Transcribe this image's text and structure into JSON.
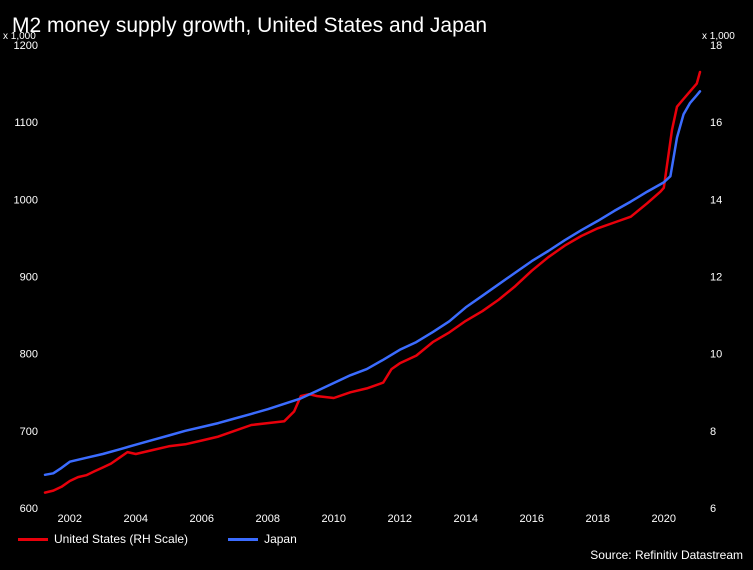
{
  "chart_data": {
    "type": "line",
    "title": "M2 money supply growth, United States and Japan",
    "left_axis": {
      "unit": "x 1,000",
      "ylim": [
        600,
        1200
      ],
      "ticks": [
        600,
        700,
        800,
        900,
        1000,
        1100,
        1200
      ]
    },
    "right_axis": {
      "unit": "x 1,000",
      "ylim": [
        6,
        18
      ],
      "ticks": [
        6,
        8,
        10,
        12,
        14,
        16,
        18
      ]
    },
    "xlim": [
      2001.25,
      2021.25
    ],
    "x_ticks": [
      2002,
      2004,
      2006,
      2008,
      2010,
      2012,
      2014,
      2016,
      2018,
      2020
    ],
    "series": [
      {
        "name": "United States (RH Scale)",
        "axis": "right",
        "color": "#e8000b",
        "points": [
          [
            2001.25,
            6.4
          ],
          [
            2001.5,
            6.45
          ],
          [
            2001.75,
            6.55
          ],
          [
            2002.0,
            6.7
          ],
          [
            2002.25,
            6.8
          ],
          [
            2002.5,
            6.85
          ],
          [
            2002.75,
            6.95
          ],
          [
            2003.0,
            7.05
          ],
          [
            2003.25,
            7.15
          ],
          [
            2003.5,
            7.3
          ],
          [
            2003.75,
            7.45
          ],
          [
            2004.0,
            7.4
          ],
          [
            2004.5,
            7.5
          ],
          [
            2005.0,
            7.6
          ],
          [
            2005.5,
            7.65
          ],
          [
            2006.0,
            7.75
          ],
          [
            2006.5,
            7.85
          ],
          [
            2007.0,
            8.0
          ],
          [
            2007.5,
            8.15
          ],
          [
            2008.0,
            8.2
          ],
          [
            2008.5,
            8.25
          ],
          [
            2008.8,
            8.5
          ],
          [
            2009.0,
            8.9
          ],
          [
            2009.25,
            8.95
          ],
          [
            2009.5,
            8.9
          ],
          [
            2010.0,
            8.85
          ],
          [
            2010.5,
            9.0
          ],
          [
            2011.0,
            9.1
          ],
          [
            2011.5,
            9.25
          ],
          [
            2011.75,
            9.6
          ],
          [
            2012.0,
            9.75
          ],
          [
            2012.5,
            9.95
          ],
          [
            2013.0,
            10.3
          ],
          [
            2013.5,
            10.55
          ],
          [
            2014.0,
            10.85
          ],
          [
            2014.5,
            11.1
          ],
          [
            2015.0,
            11.4
          ],
          [
            2015.5,
            11.75
          ],
          [
            2016.0,
            12.15
          ],
          [
            2016.5,
            12.5
          ],
          [
            2017.0,
            12.8
          ],
          [
            2017.5,
            13.05
          ],
          [
            2018.0,
            13.25
          ],
          [
            2018.5,
            13.4
          ],
          [
            2019.0,
            13.55
          ],
          [
            2019.5,
            13.9
          ],
          [
            2019.9,
            14.2
          ],
          [
            2020.0,
            14.3
          ],
          [
            2020.25,
            15.8
          ],
          [
            2020.4,
            16.4
          ],
          [
            2020.6,
            16.6
          ],
          [
            2020.8,
            16.8
          ],
          [
            2021.0,
            17.0
          ],
          [
            2021.1,
            17.3
          ]
        ]
      },
      {
        "name": "Japan",
        "axis": "left",
        "color": "#3b6cff",
        "points": [
          [
            2001.25,
            643
          ],
          [
            2001.5,
            645
          ],
          [
            2001.75,
            652
          ],
          [
            2002.0,
            660
          ],
          [
            2002.5,
            665
          ],
          [
            2003.0,
            670
          ],
          [
            2003.5,
            676
          ],
          [
            2004.0,
            682
          ],
          [
            2004.5,
            688
          ],
          [
            2005.0,
            694
          ],
          [
            2005.5,
            700
          ],
          [
            2006.0,
            705
          ],
          [
            2006.5,
            710
          ],
          [
            2007.0,
            716
          ],
          [
            2007.5,
            722
          ],
          [
            2008.0,
            728
          ],
          [
            2008.5,
            735
          ],
          [
            2009.0,
            742
          ],
          [
            2009.5,
            752
          ],
          [
            2010.0,
            762
          ],
          [
            2010.5,
            772
          ],
          [
            2011.0,
            780
          ],
          [
            2011.5,
            792
          ],
          [
            2012.0,
            805
          ],
          [
            2012.5,
            815
          ],
          [
            2013.0,
            828
          ],
          [
            2013.5,
            842
          ],
          [
            2014.0,
            860
          ],
          [
            2014.5,
            875
          ],
          [
            2015.0,
            890
          ],
          [
            2015.5,
            905
          ],
          [
            2016.0,
            920
          ],
          [
            2016.5,
            933
          ],
          [
            2017.0,
            947
          ],
          [
            2017.5,
            960
          ],
          [
            2018.0,
            972
          ],
          [
            2018.5,
            985
          ],
          [
            2019.0,
            997
          ],
          [
            2019.5,
            1010
          ],
          [
            2020.0,
            1022
          ],
          [
            2020.2,
            1030
          ],
          [
            2020.4,
            1080
          ],
          [
            2020.6,
            1110
          ],
          [
            2020.8,
            1125
          ],
          [
            2021.0,
            1135
          ],
          [
            2021.1,
            1140
          ]
        ]
      }
    ],
    "legend_placement": "bottom-left",
    "source": "Source: Refinitiv Datastream"
  }
}
